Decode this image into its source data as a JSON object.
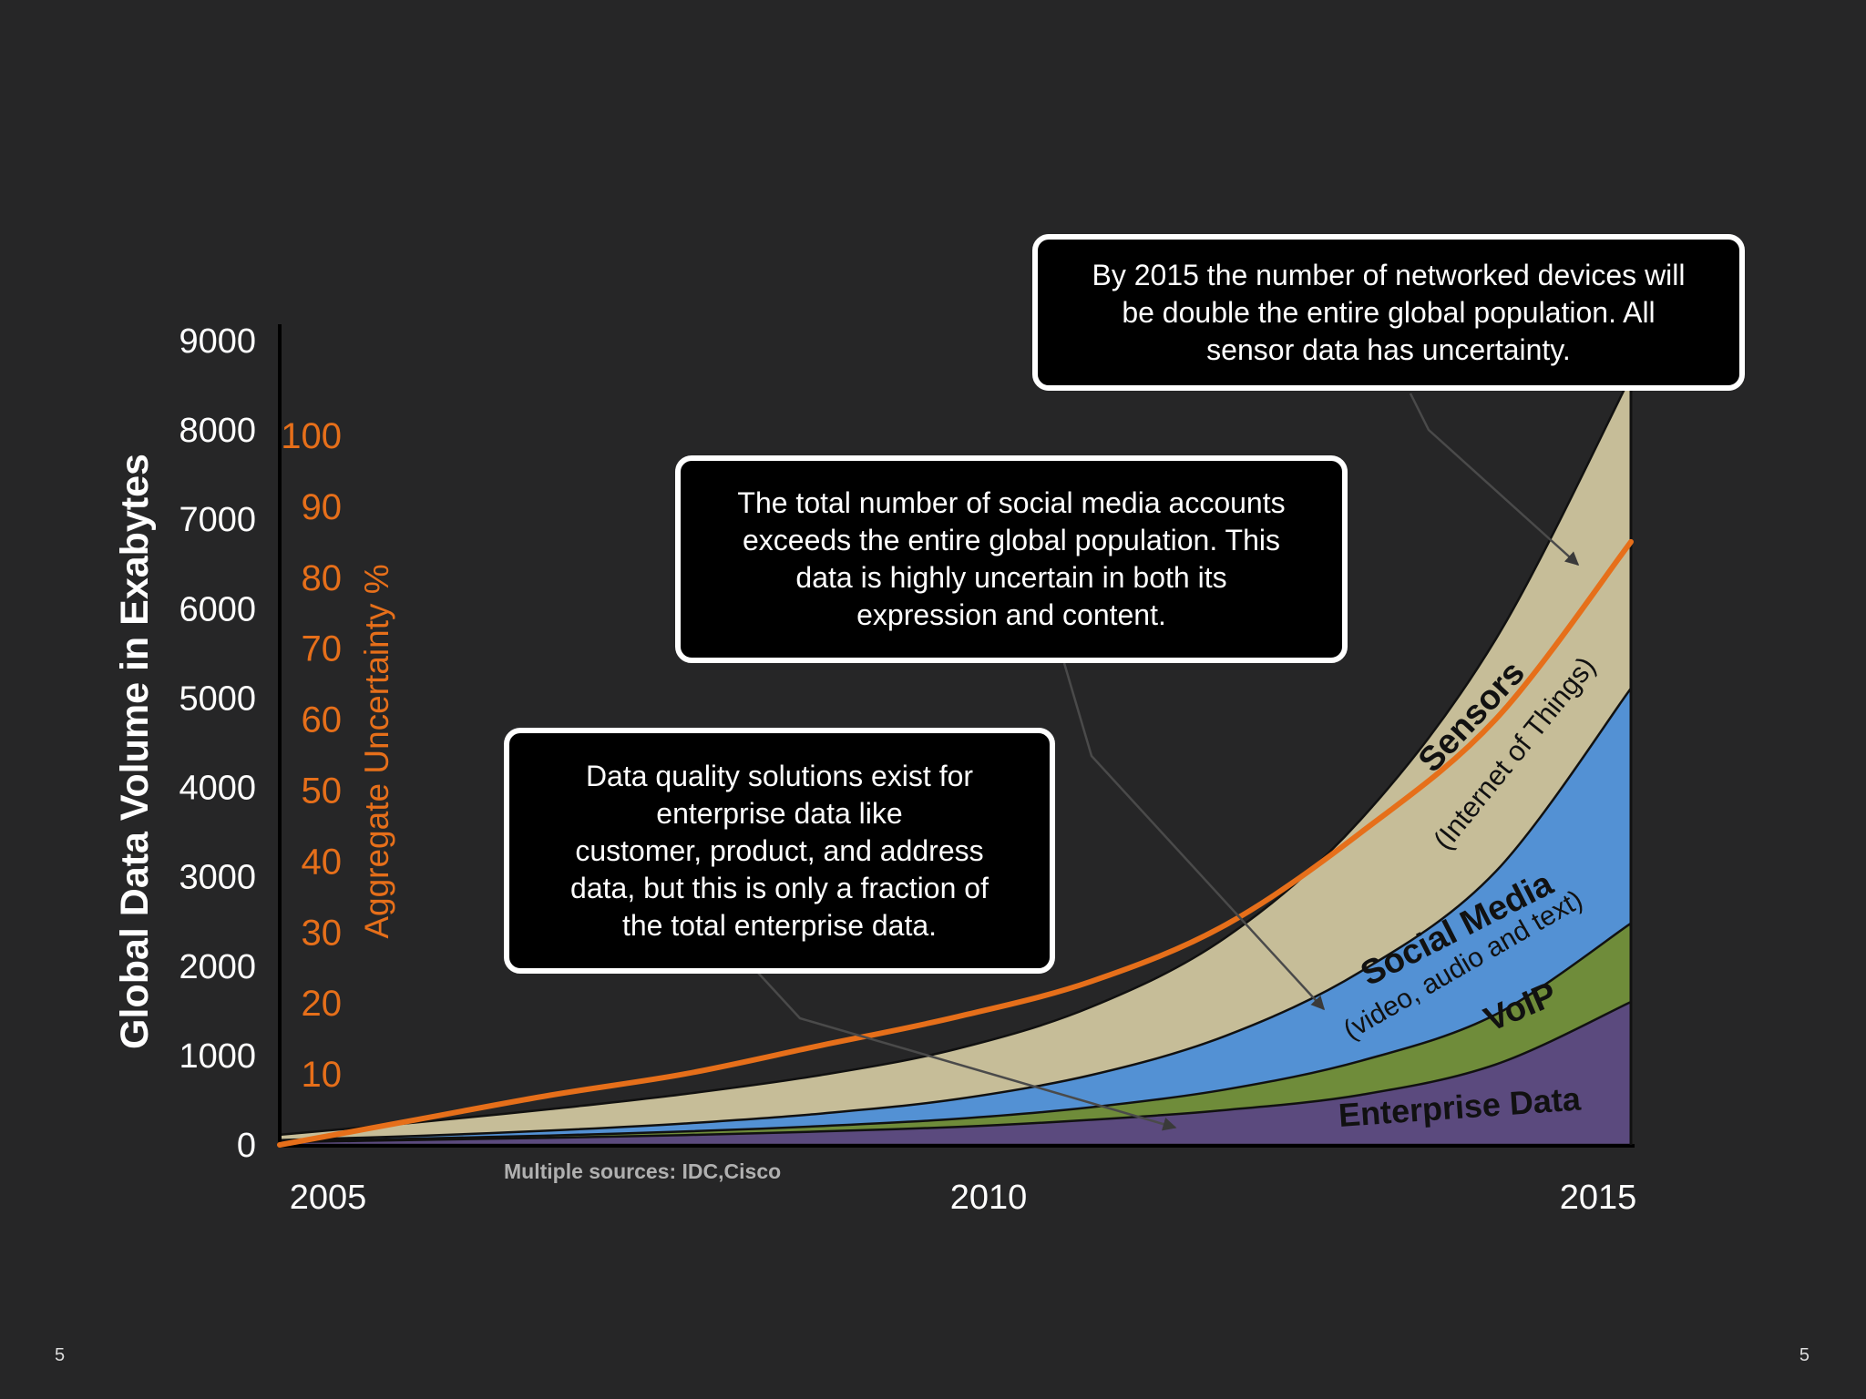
{
  "chart_data": {
    "type": "area",
    "stacked": true,
    "x": [
      2005,
      2006,
      2007,
      2008,
      2009,
      2010,
      2011,
      2012,
      2013,
      2014,
      2015
    ],
    "xticks": [
      "2005",
      "2010",
      "2015"
    ],
    "ylabel": "Global Data Volume in Exabytes",
    "ylim": [
      0,
      9000
    ],
    "yticks": [
      "0",
      "1000",
      "2000",
      "3000",
      "4000",
      "5000",
      "6000",
      "7000",
      "8000",
      "9000"
    ],
    "ylabel_right": "Aggregate Uncertainty %",
    "ylim_right": [
      0,
      100
    ],
    "yticks_right": [
      "10",
      "20",
      "30",
      "40",
      "50",
      "60",
      "70",
      "80",
      "90",
      "100"
    ],
    "series": [
      {
        "name": "Enterprise Data",
        "color": "#5b4a7e",
        "values": [
          30,
          55,
          80,
          110,
          150,
          200,
          280,
          390,
          560,
          900,
          1600
        ]
      },
      {
        "name": "VoIP",
        "color": "#6f8c3a",
        "values": [
          8,
          15,
          25,
          40,
          60,
          90,
          140,
          230,
          380,
          560,
          880
        ]
      },
      {
        "name": "Social Media",
        "color": "#5391d4",
        "values": [
          15,
          30,
          55,
          90,
          140,
          220,
          360,
          600,
          1000,
          1600,
          2630
        ]
      },
      {
        "name": "Sensors",
        "color": "#c6bd98",
        "values": [
          60,
          150,
          240,
          330,
          430,
          560,
          760,
          1100,
          1700,
          2600,
          3490
        ]
      }
    ],
    "uncertainty_line": {
      "color": "#e66f1a",
      "values": [
        0,
        3.5,
        7,
        10,
        14,
        18,
        23,
        31,
        44,
        60,
        85
      ]
    },
    "layer_labels": {
      "sensors": "Sensors",
      "sensors_sub": "(Internet of Things)",
      "social": "Social Media",
      "social_sub": "(video, audio and text)",
      "voip": "VoIP",
      "enterprise": "Enterprise Data"
    },
    "source": "Multiple sources: IDC,Cisco",
    "annotations": [
      "By 2015 the number of networked devices will\nbe double the entire global population. All\nsensor data has uncertainty.",
      "The total number of social media accounts\nexceeds the entire global population. This\ndata is highly uncertain in both its\nexpression and content.",
      "Data quality solutions exist for\nenterprise data like\ncustomer, product, and address\ndata, but this is only a fraction of\nthe total enterprise data."
    ]
  },
  "page_number_left": "5",
  "page_number_right": "5"
}
